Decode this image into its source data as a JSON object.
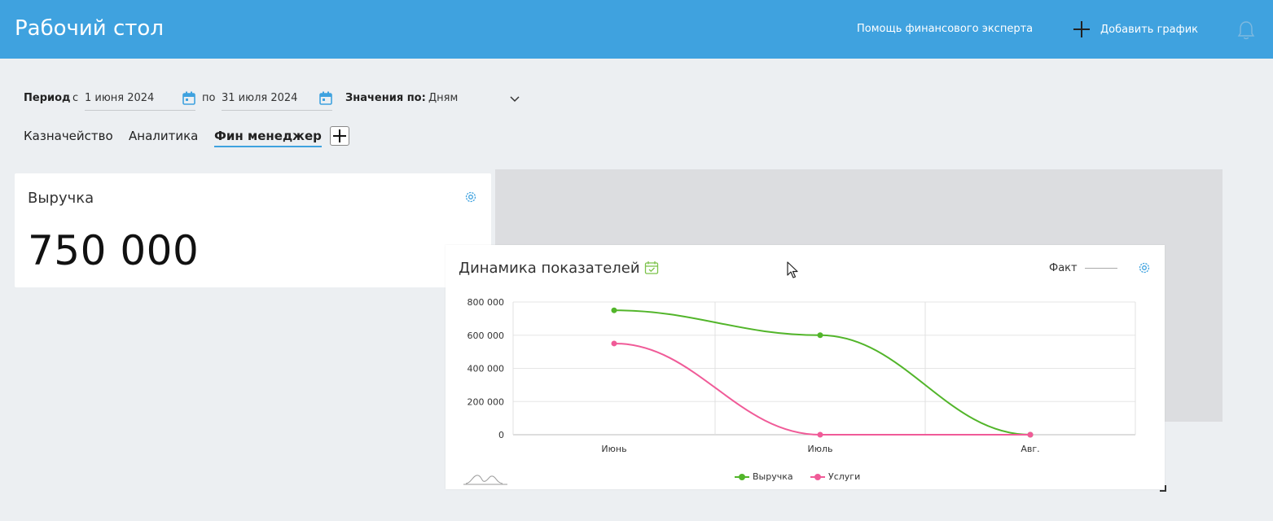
{
  "header": {
    "title": "Рабочий стол",
    "help_label": "Помощь финансового эксперта",
    "add_chart_label": "Добавить график"
  },
  "filters": {
    "period_label": "Период",
    "from_label": "с",
    "date_from": "1 июня 2024",
    "to_label": "по",
    "date_to": "31 июля 2024",
    "values_label": "Значения по:",
    "values_selected": "Дням"
  },
  "tabs": [
    {
      "label": "Казначейство",
      "active": false
    },
    {
      "label": "Аналитика",
      "active": false
    },
    {
      "label": "Фин менеджер",
      "active": true
    }
  ],
  "revenue_card": {
    "title": "Выручка",
    "value": "750 000"
  },
  "dynamics_card": {
    "title": "Динамика показателей",
    "legend_fact": "Факт"
  },
  "colors": {
    "header": "#3fa2df",
    "series_revenue": "#52b52a",
    "series_services": "#f05b98",
    "icon_blue": "#3fa2df",
    "icon_green": "#7cc24a"
  },
  "chart_data": {
    "type": "line",
    "categories": [
      "Июнь",
      "Июль",
      "Авг."
    ],
    "y_ticks": [
      "800 000",
      "600 000",
      "400 000",
      "200 000",
      "0"
    ],
    "ylim": [
      0,
      800000
    ],
    "series": [
      {
        "name": "Выручка",
        "values": [
          750000,
          600000,
          0
        ]
      },
      {
        "name": "Услуги",
        "values": [
          550000,
          0,
          0
        ]
      }
    ],
    "grid": true,
    "legend_position": "bottom"
  }
}
